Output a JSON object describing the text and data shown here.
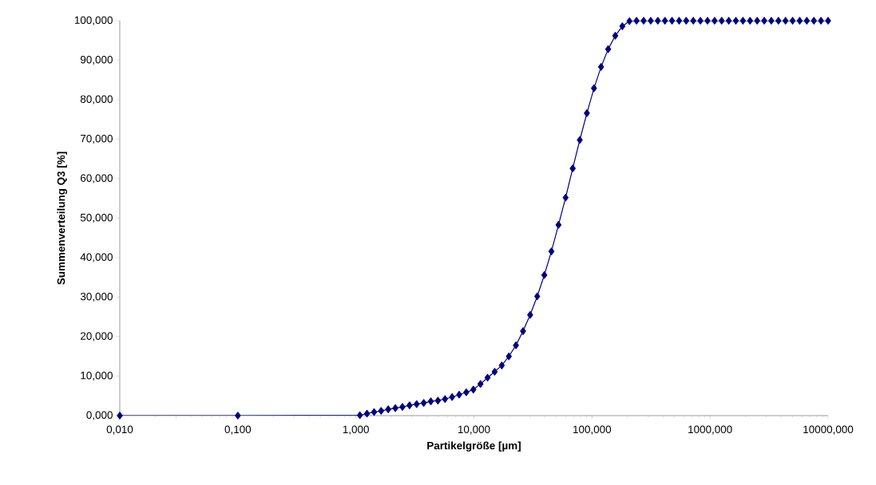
{
  "chart_data": {
    "type": "line",
    "xlabel": "Partikelgröße [µm]",
    "ylabel": "Summenverteilung Q3 [%]",
    "log": "x",
    "marker": "diamond",
    "line_style": "solid",
    "xlim": [
      0.01,
      10000
    ],
    "ylim": [
      0,
      100
    ],
    "xticks": [
      {
        "value": 0.01,
        "label": "0,010"
      },
      {
        "value": 0.1,
        "label": "0,100"
      },
      {
        "value": 1,
        "label": "1,000"
      },
      {
        "value": 10,
        "label": "10,000"
      },
      {
        "value": 100,
        "label": "100,000"
      },
      {
        "value": 1000,
        "label": "1000,000"
      },
      {
        "value": 10000,
        "label": "10000,000"
      }
    ],
    "yticks": [
      {
        "value": 0,
        "label": "0,000"
      },
      {
        "value": 10,
        "label": "10,000"
      },
      {
        "value": 20,
        "label": "20,000"
      },
      {
        "value": 30,
        "label": "30,000"
      },
      {
        "value": 40,
        "label": "40,000"
      },
      {
        "value": 50,
        "label": "50,000"
      },
      {
        "value": 60,
        "label": "60,000"
      },
      {
        "value": 70,
        "label": "70,000"
      },
      {
        "value": 80,
        "label": "80,000"
      },
      {
        "value": 90,
        "label": "90,000"
      },
      {
        "value": 100,
        "label": "100,000"
      }
    ],
    "x": [
      0.01,
      0.1,
      1.081,
      1.242,
      1.426,
      1.637,
      1.88,
      2.159,
      2.48,
      2.848,
      3.27,
      3.755,
      4.313,
      4.953,
      5.688,
      6.532,
      7.501,
      8.614,
      9.893,
      11.36,
      13.05,
      14.98,
      17.21,
      19.76,
      22.69,
      26.06,
      29.93,
      34.37,
      39.47,
      45.33,
      52.05,
      59.78,
      68.65,
      78.84,
      90.54,
      104.0,
      119.4,
      137.1,
      157.5,
      180.8,
      207.7,
      238.5,
      273.9,
      314.5,
      361.2,
      414.8,
      476.4,
      547.1,
      628.3,
      721.5,
      828.6,
      951.5,
      1093,
      1255,
      1441,
      1655,
      1900,
      2182,
      2506,
      2878,
      3305,
      3796,
      4359,
      5006,
      5749,
      6602,
      7582,
      8707,
      10000
    ],
    "series": [
      {
        "color": "#000080",
        "values": [
          0,
          0,
          0.1,
          0.5,
          0.9,
          1.2,
          1.6,
          1.9,
          2.2,
          2.6,
          2.9,
          3.2,
          3.6,
          3.8,
          4.2,
          4.7,
          5.3,
          5.9,
          6.6,
          8.0,
          9.6,
          11.1,
          12.7,
          15.0,
          17.8,
          21.4,
          25.5,
          30.2,
          35.6,
          41.6,
          48.3,
          55.2,
          62.6,
          69.8,
          76.6,
          82.9,
          88.3,
          92.8,
          96.2,
          98.6,
          99.9,
          100,
          100,
          100,
          100,
          100,
          100,
          100,
          100,
          100,
          100,
          100,
          100,
          100,
          100,
          100,
          100,
          100,
          100,
          100,
          100,
          100,
          100,
          100,
          100,
          100,
          100,
          100,
          100
        ]
      }
    ]
  }
}
